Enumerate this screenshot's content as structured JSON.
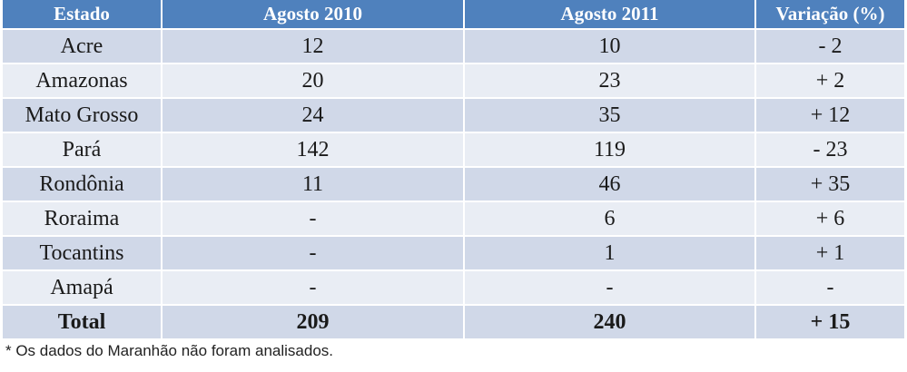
{
  "table": {
    "headers": [
      "Estado",
      "Agosto 2010",
      "Agosto 2011",
      "Variação (%)"
    ],
    "rows": [
      [
        "Acre",
        "12",
        "10",
        "- 2"
      ],
      [
        "Amazonas",
        "20",
        "23",
        "+ 2"
      ],
      [
        "Mato Grosso",
        "24",
        "35",
        "+ 12"
      ],
      [
        "Pará",
        "142",
        "119",
        "- 23"
      ],
      [
        "Rondônia",
        "11",
        "46",
        "+ 35"
      ],
      [
        "Roraima",
        "-",
        "6",
        "+ 6"
      ],
      [
        "Tocantins",
        "-",
        "1",
        "+ 1"
      ],
      [
        "Amapá",
        "-",
        "-",
        "-"
      ]
    ],
    "total": [
      "Total",
      "209",
      "240",
      "+ 15"
    ]
  },
  "footnote": "* Os dados do Maranhão não foram analisados.",
  "colors": {
    "header_bg": "#4f81bd",
    "row_dark": "#d0d8e8",
    "row_light": "#e9edf4"
  }
}
